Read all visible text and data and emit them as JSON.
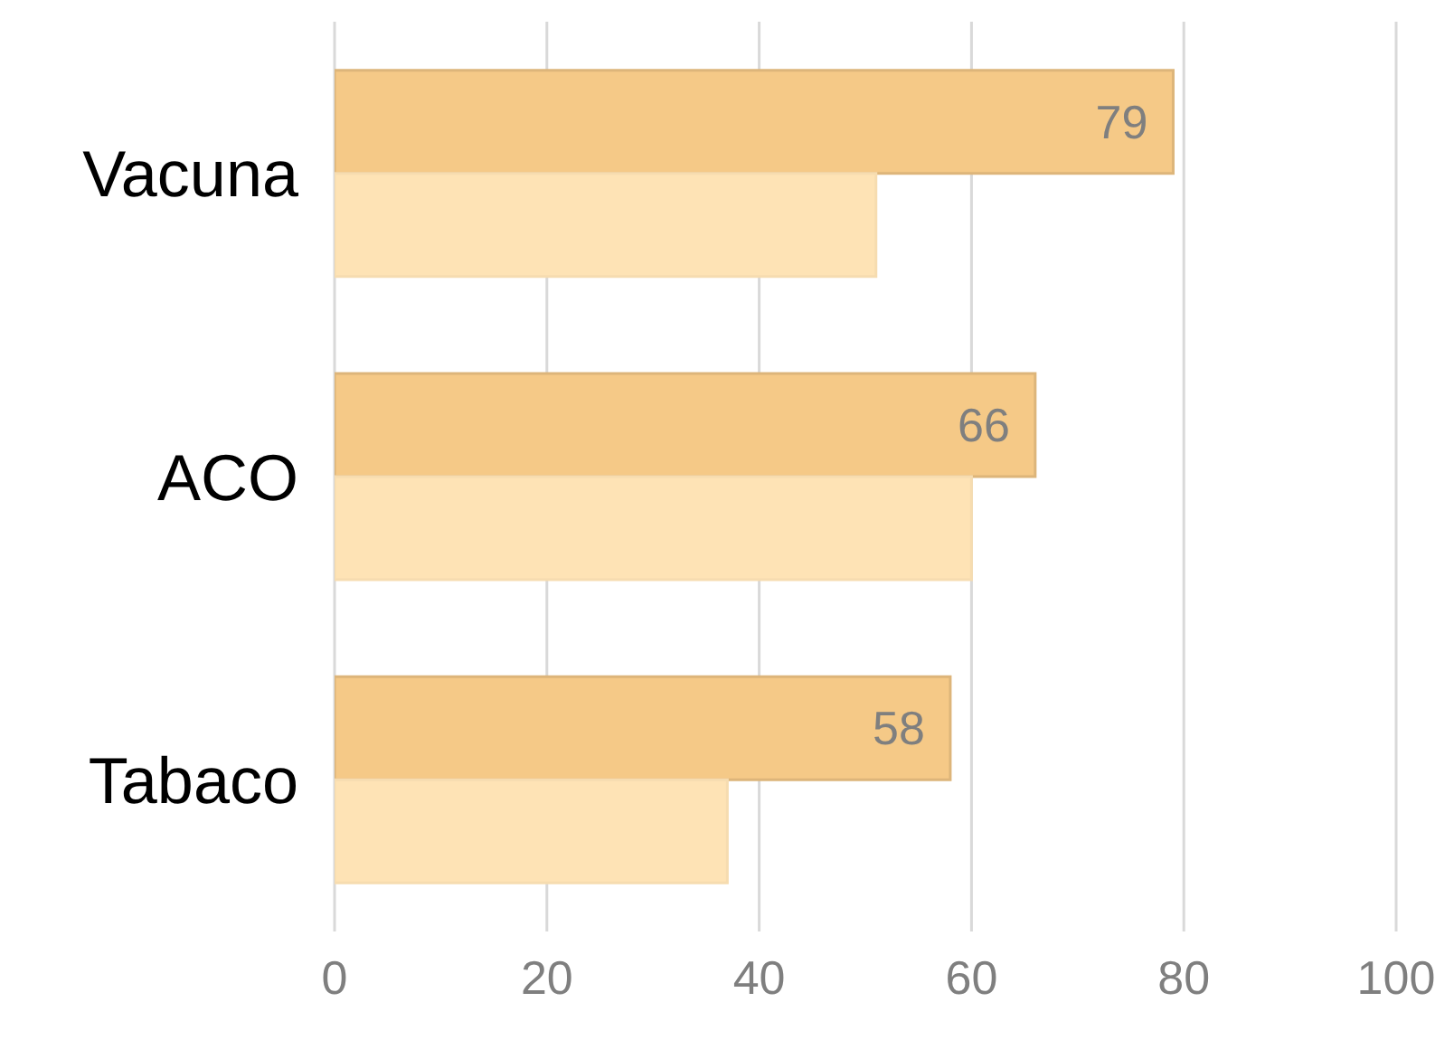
{
  "chart_data": {
    "type": "bar",
    "orientation": "horizontal",
    "categories": [
      "Vacuna",
      "ACO",
      "Tabaco"
    ],
    "series": [
      {
        "color": "#f5c987",
        "values": [
          79,
          66,
          58
        ],
        "value_labels": [
          "79",
          "66",
          "58"
        ]
      },
      {
        "color": "#fee3b5",
        "values": [
          51,
          60,
          37
        ]
      }
    ],
    "xlim": [
      0,
      100
    ],
    "xticks": [
      0,
      20,
      40,
      60,
      80,
      100
    ],
    "grid": "x",
    "legend": false
  }
}
